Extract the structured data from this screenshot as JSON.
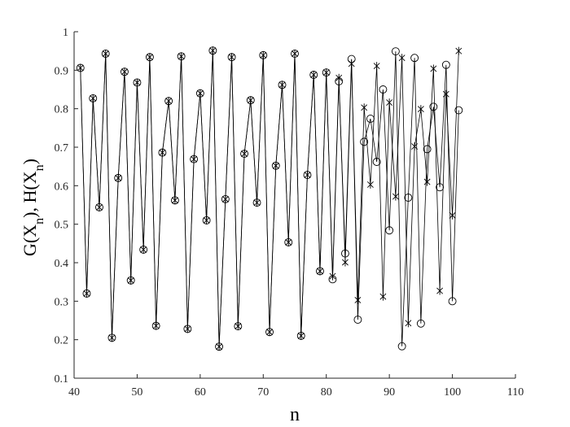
{
  "chart_data": {
    "type": "line",
    "title": "",
    "xlabel": "n",
    "ylabel": "G(X_n), H(X_n)",
    "xlim": [
      40,
      110
    ],
    "ylim": [
      0.1,
      1.0
    ],
    "xticks": [
      "40",
      "50",
      "60",
      "70",
      "80",
      "90",
      "100",
      "110"
    ],
    "yticks": [
      "0.1",
      "0.2",
      "0.3",
      "0.4",
      "0.5",
      "0.6",
      "0.7",
      "0.8",
      "0.9",
      "1"
    ],
    "grid": false,
    "legend": "none",
    "x": [
      41,
      42,
      43,
      44,
      45,
      46,
      47,
      48,
      49,
      50,
      51,
      52,
      53,
      54,
      55,
      56,
      57,
      58,
      59,
      60,
      61,
      62,
      63,
      64,
      65,
      66,
      67,
      68,
      69,
      70,
      71,
      72,
      73,
      74,
      75,
      76,
      77,
      78,
      79,
      80,
      81,
      82,
      83,
      84,
      85,
      86,
      87,
      88,
      89,
      90,
      91,
      92,
      93,
      94,
      95,
      96,
      97,
      98,
      99,
      100,
      101
    ],
    "series": [
      {
        "marker": "circle",
        "values": [
          0.906,
          0.32,
          0.827,
          0.544,
          0.943,
          0.205,
          0.62,
          0.896,
          0.354,
          0.868,
          0.434,
          0.934,
          0.236,
          0.686,
          0.82,
          0.562,
          0.936,
          0.228,
          0.669,
          0.84,
          0.51,
          0.951,
          0.182,
          0.565,
          0.934,
          0.235,
          0.683,
          0.822,
          0.556,
          0.939,
          0.22,
          0.652,
          0.862,
          0.453,
          0.943,
          0.21,
          0.628,
          0.888,
          0.378,
          0.894,
          0.357,
          0.871,
          0.424,
          0.929,
          0.252,
          0.714,
          0.774,
          0.662,
          0.85,
          0.484,
          0.949,
          0.183,
          0.569,
          0.932,
          0.242,
          0.695,
          0.805,
          0.596,
          0.914,
          0.3,
          0.796
        ]
      },
      {
        "marker": "asterisk",
        "values": [
          0.906,
          0.32,
          0.827,
          0.544,
          0.943,
          0.205,
          0.62,
          0.896,
          0.354,
          0.868,
          0.434,
          0.934,
          0.236,
          0.686,
          0.82,
          0.562,
          0.936,
          0.228,
          0.669,
          0.84,
          0.51,
          0.951,
          0.182,
          0.565,
          0.934,
          0.235,
          0.683,
          0.822,
          0.556,
          0.939,
          0.22,
          0.652,
          0.862,
          0.453,
          0.943,
          0.21,
          0.628,
          0.888,
          0.378,
          0.894,
          0.365,
          0.88,
          0.401,
          0.917,
          0.303,
          0.803,
          0.603,
          0.911,
          0.312,
          0.816,
          0.572,
          0.932,
          0.243,
          0.702,
          0.799,
          0.61,
          0.904,
          0.327,
          0.838,
          0.523,
          0.95
        ]
      }
    ]
  }
}
